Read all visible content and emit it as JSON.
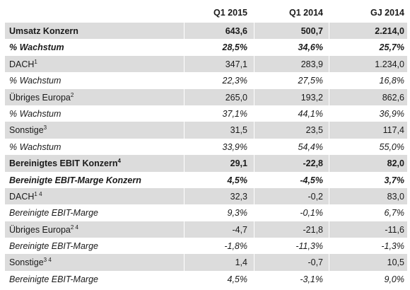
{
  "columns": [
    "Q1 2015",
    "Q1 2014",
    "GJ 2014"
  ],
  "rows": [
    {
      "label": "Umsatz Konzern",
      "sup": "",
      "values": [
        "643,6",
        "500,7",
        "2.214,0"
      ],
      "bold": true,
      "italic": false,
      "shade": true
    },
    {
      "label": "% Wachstum",
      "sup": "",
      "values": [
        "28,5%",
        "34,6%",
        "25,7%"
      ],
      "bold": true,
      "italic": true,
      "shade": false
    },
    {
      "label": "DACH",
      "sup": "1",
      "values": [
        "347,1",
        "283,9",
        "1.234,0"
      ],
      "bold": false,
      "italic": false,
      "shade": true
    },
    {
      "label": "% Wachstum",
      "sup": "",
      "values": [
        "22,3%",
        "27,5%",
        "16,8%"
      ],
      "bold": false,
      "italic": true,
      "shade": false
    },
    {
      "label": "Übriges Europa",
      "sup": "2",
      "values": [
        "265,0",
        "193,2",
        "862,6"
      ],
      "bold": false,
      "italic": false,
      "shade": true
    },
    {
      "label": "% Wachstum",
      "sup": "",
      "values": [
        "37,1%",
        "44,1%",
        "36,9%"
      ],
      "bold": false,
      "italic": true,
      "shade": false
    },
    {
      "label": "Sonstige",
      "sup": "3",
      "values": [
        "31,5",
        "23,5",
        "117,4"
      ],
      "bold": false,
      "italic": false,
      "shade": true
    },
    {
      "label": "% Wachstum",
      "sup": "",
      "values": [
        "33,9%",
        "54,4%",
        "55,0%"
      ],
      "bold": false,
      "italic": true,
      "shade": false
    },
    {
      "label": "Bereinigtes EBIT Konzern",
      "sup": "4",
      "values": [
        "29,1",
        "-22,8",
        "82,0"
      ],
      "bold": true,
      "italic": false,
      "shade": true
    },
    {
      "label": "Bereinigte EBIT-Marge Konzern",
      "sup": "",
      "values": [
        "4,5%",
        "-4,5%",
        "3,7%"
      ],
      "bold": true,
      "italic": true,
      "shade": false
    },
    {
      "label": "DACH",
      "sup": "1 4",
      "values": [
        "32,3",
        "-0,2",
        "83,0"
      ],
      "bold": false,
      "italic": false,
      "shade": true
    },
    {
      "label": "Bereinigte EBIT-Marge",
      "sup": "",
      "values": [
        "9,3%",
        "-0,1%",
        "6,7%"
      ],
      "bold": false,
      "italic": true,
      "shade": false
    },
    {
      "label": "Übriges Europa",
      "sup": "2 4",
      "values": [
        "-4,7",
        "-21,8",
        "-11,6"
      ],
      "bold": false,
      "italic": false,
      "shade": true
    },
    {
      "label": "Bereinigte EBIT-Marge",
      "sup": "",
      "values": [
        "-1,8%",
        "-11,3%",
        "-1,3%"
      ],
      "bold": false,
      "italic": true,
      "shade": false
    },
    {
      "label": "Sonstige",
      "sup": "3 4",
      "values": [
        "1,4",
        "-0,7",
        "10,5"
      ],
      "bold": false,
      "italic": false,
      "shade": true
    },
    {
      "label": "Bereinigte EBIT-Marge",
      "sup": "",
      "values": [
        "4,5%",
        "-3,1%",
        "9,0%"
      ],
      "bold": false,
      "italic": true,
      "shade": false
    }
  ]
}
